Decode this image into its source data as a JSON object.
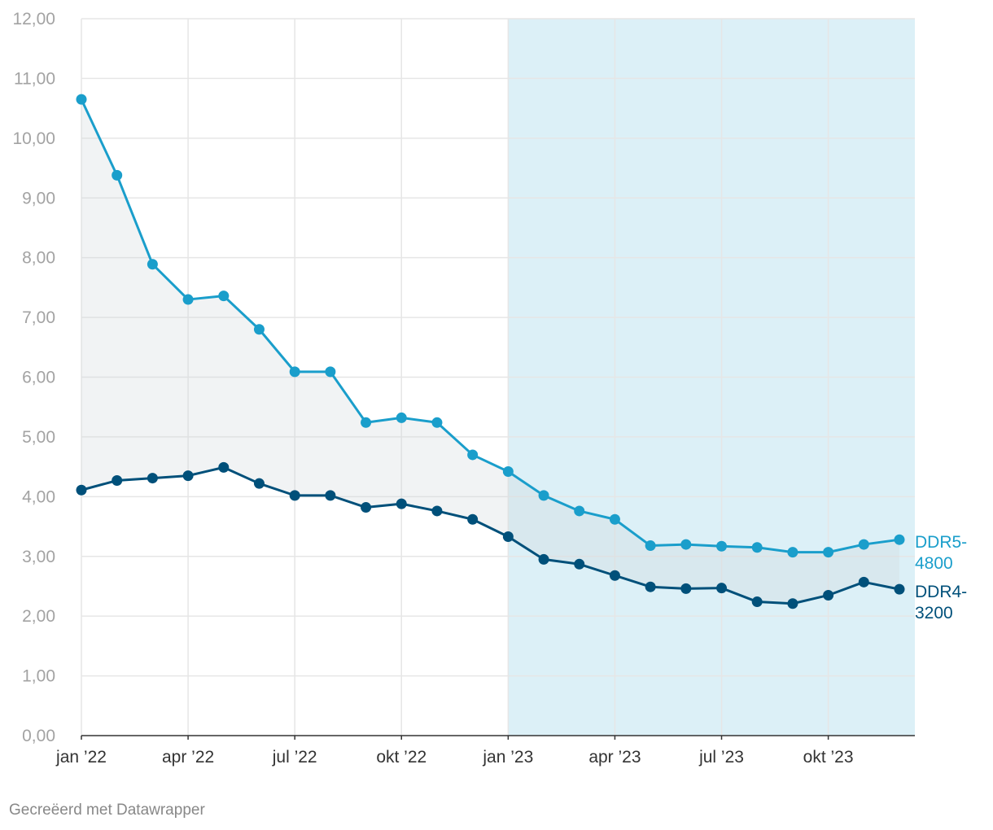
{
  "chart_data": {
    "type": "line",
    "title": "",
    "xlabel": "",
    "ylabel": "",
    "ylim": [
      0,
      12
    ],
    "y_ticks": [
      "0,00",
      "1,00",
      "2,00",
      "3,00",
      "4,00",
      "5,00",
      "6,00",
      "7,00",
      "8,00",
      "9,00",
      "10,00",
      "11,00",
      "12,00"
    ],
    "x": [
      "2022-01",
      "2022-02",
      "2022-03",
      "2022-04",
      "2022-05",
      "2022-06",
      "2022-07",
      "2022-08",
      "2022-09",
      "2022-10",
      "2022-11",
      "2022-12",
      "2023-01",
      "2023-02",
      "2023-03",
      "2023-04",
      "2023-05",
      "2023-06",
      "2023-07",
      "2023-08",
      "2023-09",
      "2023-10",
      "2023-11",
      "2023-12"
    ],
    "x_ticks": [
      {
        "at": "2022-01",
        "label": "jan ’22"
      },
      {
        "at": "2022-04",
        "label": "apr ’22"
      },
      {
        "at": "2022-07",
        "label": "jul ’22"
      },
      {
        "at": "2022-10",
        "label": "okt ’22"
      },
      {
        "at": "2023-01",
        "label": "jan ’23"
      },
      {
        "at": "2023-04",
        "label": "apr ’23"
      },
      {
        "at": "2023-07",
        "label": "jul ’23"
      },
      {
        "at": "2023-10",
        "label": "okt ’23"
      }
    ],
    "highlight_range": [
      "2023-01",
      "2023-12"
    ],
    "grid": true,
    "series": [
      {
        "name": "DDR5-4800",
        "label_lines": [
          "DDR5-",
          "4800"
        ],
        "color": "#1a9ecb",
        "values": [
          10.65,
          9.38,
          7.89,
          7.3,
          7.36,
          6.8,
          6.09,
          6.09,
          5.24,
          5.32,
          5.24,
          4.7,
          4.42,
          4.02,
          3.76,
          3.62,
          3.18,
          3.2,
          3.17,
          3.15,
          3.07,
          3.07,
          3.2,
          3.28
        ]
      },
      {
        "name": "DDR4-3200",
        "label_lines": [
          "DDR4-",
          "3200"
        ],
        "color": "#00507a",
        "values": [
          4.11,
          4.27,
          4.31,
          4.35,
          4.49,
          4.22,
          4.02,
          4.02,
          3.82,
          3.88,
          3.76,
          3.62,
          3.33,
          2.95,
          2.87,
          2.68,
          2.49,
          2.46,
          2.47,
          2.24,
          2.21,
          2.35,
          2.57,
          2.45
        ]
      }
    ],
    "colors": {
      "band_fill": "#f0f0f0",
      "highlight_fill": "#dcf0f7",
      "grid": "#e6e6e6",
      "axis": "#333333"
    }
  },
  "footer": {
    "credit": "Gecreëerd met Datawrapper"
  }
}
